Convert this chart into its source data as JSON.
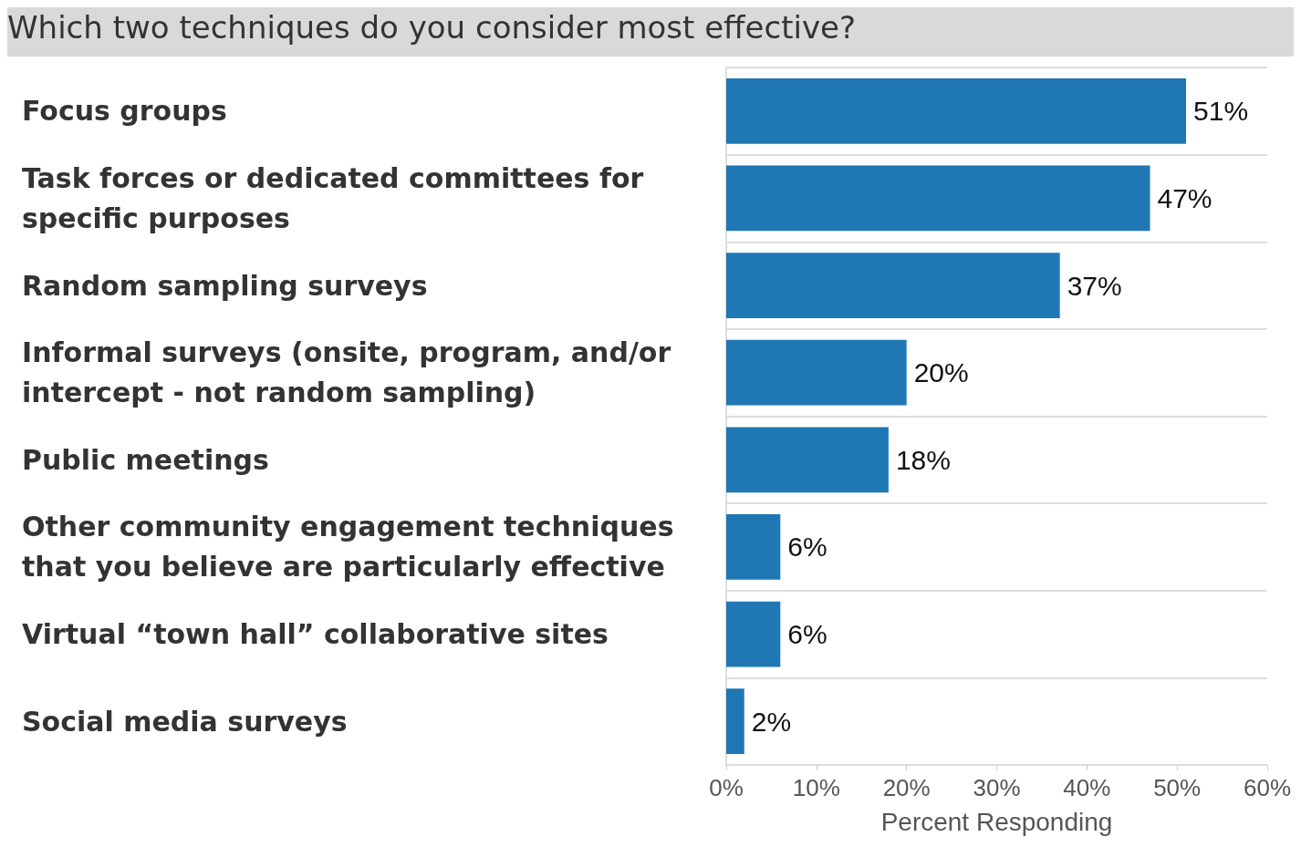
{
  "chart_data": {
    "type": "bar",
    "orientation": "horizontal",
    "title": "Which two techniques do you consider most effective?",
    "xlabel": "Percent Responding",
    "categories": [
      "Focus groups",
      "Task forces or dedicated committees for specific purposes",
      "Random sampling surveys",
      "Informal surveys (onsite, program, and/or intercept - not random sampling)",
      "Public meetings",
      "Other community engagement techniques that you believe are particularly effective",
      "Virtual “town hall” collaborative sites",
      "Social media surveys"
    ],
    "values": [
      51,
      47,
      37,
      20,
      18,
      6,
      6,
      2
    ],
    "value_labels": [
      "51%",
      "47%",
      "37%",
      "20%",
      "18%",
      "6%",
      "6%",
      "2%"
    ],
    "color": "#1f77b4",
    "xlim": [
      0,
      60
    ],
    "xticks": [
      {
        "value": 0,
        "label": "0%"
      },
      {
        "value": 10,
        "label": "10%"
      },
      {
        "value": 20,
        "label": "20%"
      },
      {
        "value": 30,
        "label": "30%"
      },
      {
        "value": 40,
        "label": "40%"
      },
      {
        "value": 50,
        "label": "50%"
      },
      {
        "value": 60,
        "label": "60%"
      }
    ],
    "grid": "y"
  }
}
